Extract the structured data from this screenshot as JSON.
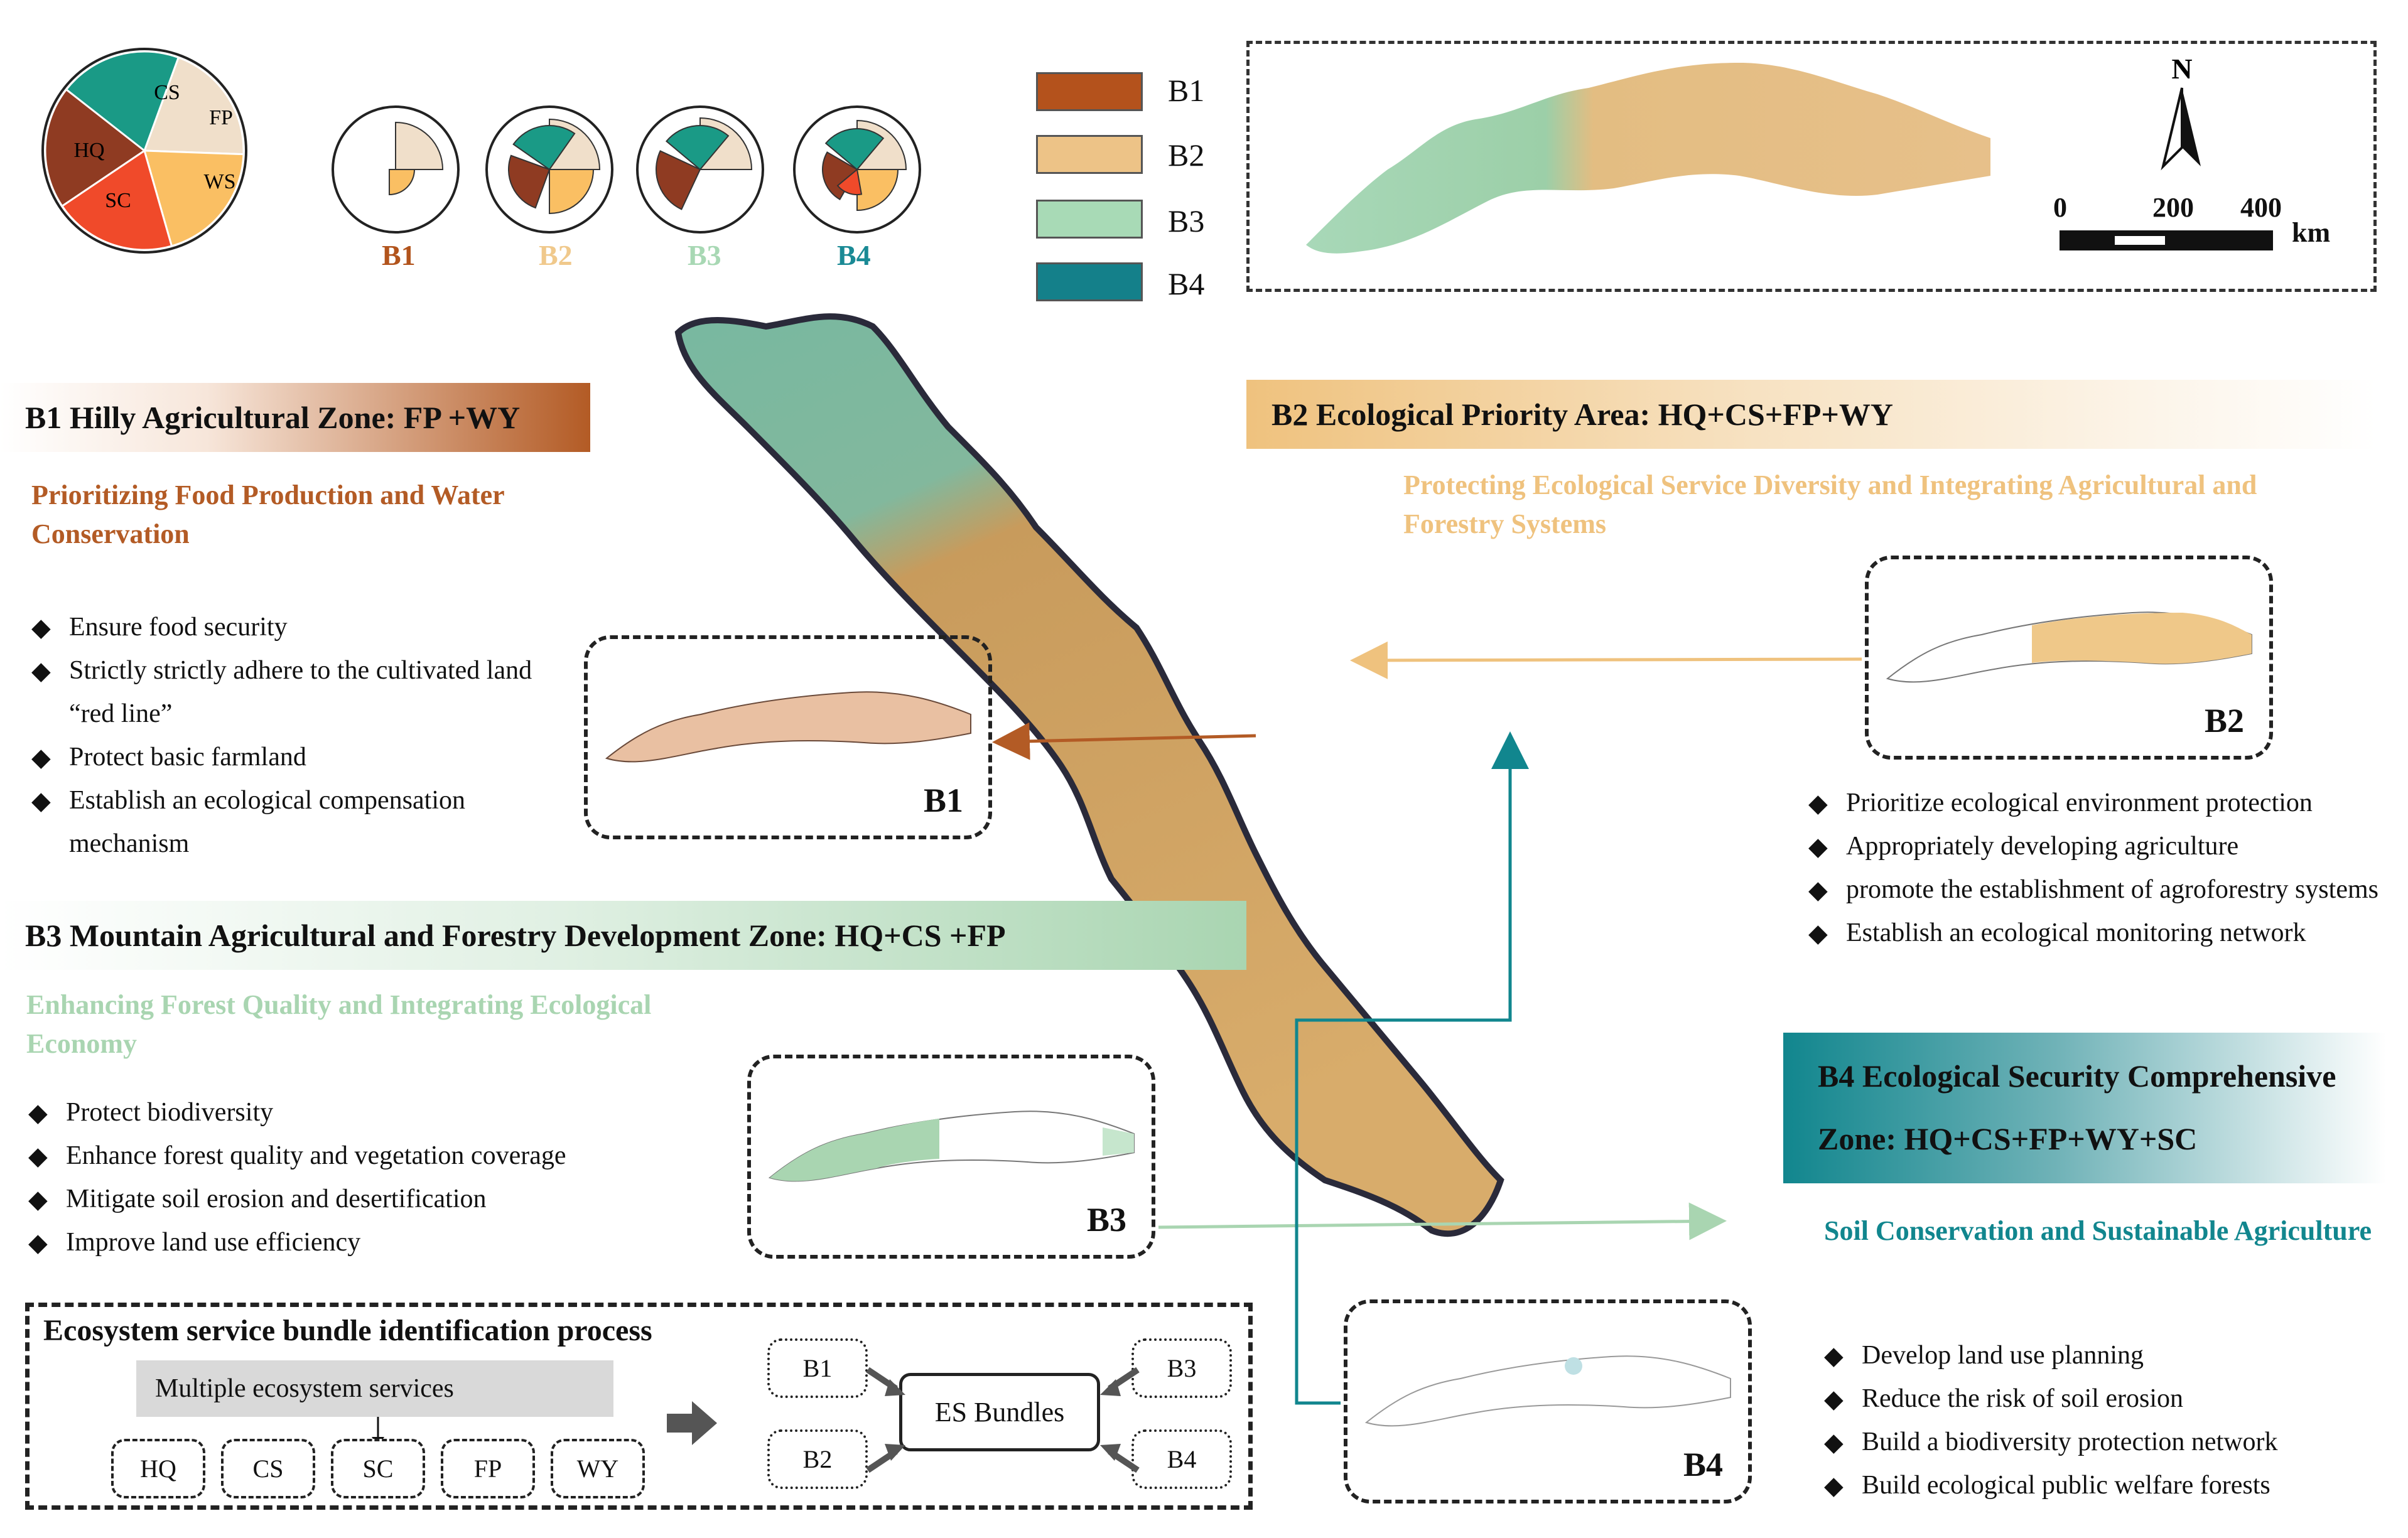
{
  "pie_legend": {
    "labels": [
      "CS",
      "FP",
      "HQ",
      "WS",
      "SC"
    ],
    "colors": {
      "CS": "#1a9a86",
      "FP": "#f0dfca",
      "HQ": "#8f3b22",
      "WS": "#fabf63",
      "SC": "#f04a2a"
    }
  },
  "bundle_pies": [
    {
      "label": "B1",
      "color": "#b2541c"
    },
    {
      "label": "B2",
      "color": "#f0c98c"
    },
    {
      "label": "B3",
      "color": "#a8d8b4"
    },
    {
      "label": "B4",
      "color": "#1a8a95"
    }
  ],
  "map_legend": [
    {
      "label": "B1",
      "color": "#b4521c"
    },
    {
      "label": "B2",
      "color": "#edc387"
    },
    {
      "label": "B3",
      "color": "#a8dab6"
    },
    {
      "label": "B4",
      "color": "#14808a"
    }
  ],
  "scale_bar": {
    "north": "N",
    "ticks": [
      "0",
      "200",
      "400"
    ],
    "unit": "km"
  },
  "zones": {
    "b1": {
      "title": "B1 Hilly Agricultural Zone: FP +WY",
      "subtitle": "Prioritizing Food Production and Water Conservation",
      "items": [
        "Ensure food security",
        "Strictly strictly adhere to the cultivated land “red line”",
        "Protect basic farmland",
        "Establish an ecological compensation mechanism"
      ],
      "map_label": "B1",
      "color": "#b35b25"
    },
    "b2": {
      "title": "B2 Ecological Priority Area: HQ+CS+FP+WY",
      "subtitle": "Protecting Ecological Service Diversity and Integrating Agricultural and Forestry Systems",
      "items": [
        "Prioritize ecological environment protection",
        "Appropriately developing agriculture",
        "promote the establishment of agroforestry systems",
        "Establish  an ecological monitoring network"
      ],
      "map_label": "B2",
      "color": "#efc27e"
    },
    "b3": {
      "title": "B3 Mountain Agricultural and Forestry Development Zone: HQ+CS +FP",
      "subtitle": "Enhancing Forest Quality and Integrating Ecological Economy",
      "items": [
        "Protect biodiversity",
        "Enhance forest quality and vegetation coverage",
        "Mitigate soil erosion and desertification",
        "Improve land use efficiency"
      ],
      "map_label": "B3",
      "color": "#a9d5b1"
    },
    "b4": {
      "title_line1": "B4 Ecological Security Comprehensive",
      "title_line2": "Zone: HQ+CS+FP+WY+SC",
      "subtitle": "Soil Conservation and Sustainable Agriculture",
      "items": [
        "Develop land use planning",
        "Reduce the risk of soil erosion",
        "Build a biodiversity protection network",
        "Build ecological public welfare forests"
      ],
      "map_label": "B4",
      "color": "#11868e"
    }
  },
  "process": {
    "title": "Ecosystem service bundle identification process",
    "multi": "Multiple ecosystem services",
    "services": [
      "HQ",
      "CS",
      "SC",
      "FP",
      "WY"
    ],
    "bundles_left": [
      "B1",
      "B2"
    ],
    "bundles_right": [
      "B3",
      "B4"
    ],
    "center": "ES Bundles"
  }
}
